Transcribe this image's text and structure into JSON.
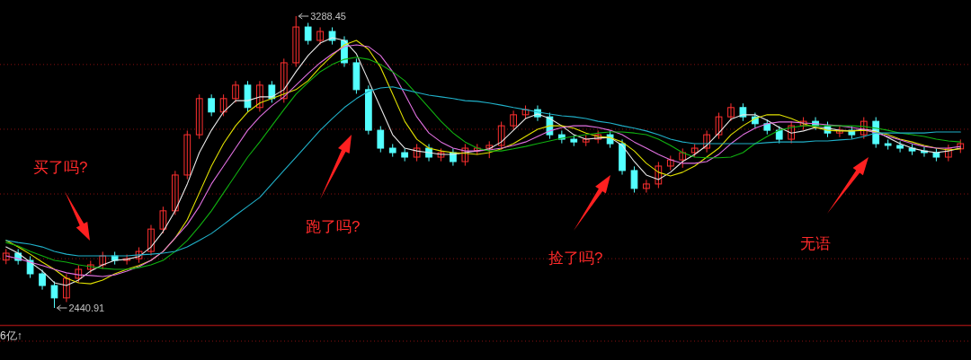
{
  "chart_data": {
    "type": "candlestick",
    "categories": [
      null,
      null,
      null,
      null,
      null,
      null,
      null,
      null,
      null,
      null,
      null,
      null,
      null,
      null,
      null,
      null,
      null,
      null,
      null,
      null,
      null,
      null,
      null,
      null,
      null,
      null,
      null,
      null,
      null,
      null,
      null,
      null,
      null,
      null,
      null,
      null,
      null,
      null,
      null,
      null,
      null,
      null,
      null,
      null,
      null,
      null,
      null,
      null,
      null,
      null,
      null,
      null,
      null,
      null,
      null,
      null,
      null,
      null,
      null,
      null,
      null,
      null,
      null,
      null,
      null,
      null,
      null,
      null,
      null,
      null,
      null,
      null,
      null,
      null,
      null,
      null,
      null,
      null,
      null,
      null
    ],
    "ohlc": [
      [
        2580,
        2612,
        2568,
        2600
      ],
      [
        2600,
        2612,
        2567,
        2579
      ],
      [
        2579,
        2591,
        2528,
        2540
      ],
      [
        2540,
        2552,
        2494,
        2506
      ],
      [
        2506,
        2518,
        2440.91,
        2470
      ],
      [
        2470,
        2539,
        2458,
        2527
      ],
      [
        2527,
        2565,
        2515,
        2553
      ],
      [
        2553,
        2578,
        2541,
        2566
      ],
      [
        2566,
        2604,
        2554,
        2592
      ],
      [
        2592,
        2604,
        2567,
        2579
      ],
      [
        2579,
        2596,
        2567,
        2584
      ],
      [
        2584,
        2617,
        2572,
        2605
      ],
      [
        2605,
        2682,
        2593,
        2670
      ],
      [
        2670,
        2735,
        2658,
        2723
      ],
      [
        2723,
        2839,
        2711,
        2827
      ],
      [
        2827,
        2956,
        2815,
        2944
      ],
      [
        2944,
        3061,
        2932,
        3049
      ],
      [
        3049,
        3061,
        2998,
        3010
      ],
      [
        3010,
        3061,
        2998,
        3049
      ],
      [
        3049,
        3100,
        3037,
        3088
      ],
      [
        3088,
        3100,
        3011,
        3023
      ],
      [
        3023,
        3100,
        3011,
        3088
      ],
      [
        3088,
        3100,
        3037,
        3049
      ],
      [
        3049,
        3165,
        3037,
        3153
      ],
      [
        3153,
        3288.45,
        3141,
        3257
      ],
      [
        3257,
        3269,
        3206,
        3218
      ],
      [
        3218,
        3256,
        3206,
        3244
      ],
      [
        3244,
        3256,
        3206,
        3218
      ],
      [
        3218,
        3230,
        3141,
        3153
      ],
      [
        3153,
        3165,
        3063,
        3075
      ],
      [
        3075,
        3087,
        2945,
        2957
      ],
      [
        2957,
        2969,
        2893,
        2905
      ],
      [
        2905,
        2917,
        2880,
        2892
      ],
      [
        2892,
        2904,
        2867,
        2879
      ],
      [
        2879,
        2917,
        2867,
        2905
      ],
      [
        2905,
        2917,
        2867,
        2879
      ],
      [
        2879,
        2904,
        2867,
        2892
      ],
      [
        2892,
        2904,
        2854,
        2866
      ],
      [
        2866,
        2917,
        2854,
        2905
      ],
      [
        2898,
        2917,
        2886,
        2905
      ],
      [
        2905,
        2925,
        2876,
        2913
      ],
      [
        2913,
        2982,
        2901,
        2970
      ],
      [
        2970,
        3014,
        2958,
        3002
      ],
      [
        3002,
        3029,
        2990,
        3017
      ],
      [
        3017,
        3029,
        2984,
        2996
      ],
      [
        2996,
        3008,
        2932,
        2944
      ],
      [
        2944,
        2956,
        2919,
        2931
      ],
      [
        2931,
        2943,
        2911,
        2923
      ],
      [
        2923,
        2943,
        2911,
        2931
      ],
      [
        2931,
        2956,
        2919,
        2944
      ],
      [
        2944,
        2956,
        2906,
        2918
      ],
      [
        2918,
        2930,
        2828,
        2840
      ],
      [
        2840,
        2852,
        2776,
        2788
      ],
      [
        2788,
        2813,
        2776,
        2801
      ],
      [
        2801,
        2865,
        2789,
        2853
      ],
      [
        2853,
        2883,
        2841,
        2871
      ],
      [
        2871,
        2904,
        2848,
        2892
      ],
      [
        2892,
        2917,
        2880,
        2905
      ],
      [
        2905,
        2956,
        2893,
        2944
      ],
      [
        2944,
        3008,
        2932,
        2996
      ],
      [
        2996,
        3035,
        2984,
        3023
      ],
      [
        3023,
        3035,
        2984,
        2996
      ],
      [
        2996,
        3008,
        2964,
        2976
      ],
      [
        2976,
        2988,
        2945,
        2957
      ],
      [
        2957,
        2969,
        2919,
        2931
      ],
      [
        2931,
        2982,
        2919,
        2970
      ],
      [
        2970,
        2995,
        2958,
        2983
      ],
      [
        2983,
        2995,
        2958,
        2970
      ],
      [
        2970,
        2982,
        2937,
        2949
      ],
      [
        2949,
        2969,
        2937,
        2957
      ],
      [
        2957,
        2969,
        2932,
        2944
      ],
      [
        2944,
        2995,
        2932,
        2983
      ],
      [
        2983,
        2995,
        2906,
        2918
      ],
      [
        2918,
        2930,
        2901,
        2913
      ],
      [
        2913,
        2925,
        2893,
        2905
      ],
      [
        2905,
        2917,
        2885,
        2897
      ],
      [
        2897,
        2909,
        2880,
        2892
      ],
      [
        2892,
        2904,
        2867,
        2879
      ],
      [
        2879,
        2915,
        2867,
        2903
      ],
      [
        2903,
        2930,
        2891,
        2918
      ]
    ],
    "series": [
      {
        "type": "line",
        "color": "#e8e8e8",
        "values": [
          2618,
          2600,
          2574,
          2548,
          2514,
          2506,
          2522,
          2548,
          2566,
          2579,
          2582,
          2590,
          2618,
          2663,
          2723,
          2801,
          2892,
          2957,
          3010,
          3043,
          3043,
          3054,
          3054,
          3075,
          3127,
          3174,
          3210,
          3226,
          3218,
          3179,
          3101,
          3023,
          2944,
          2905,
          2897,
          2892,
          2887,
          2887,
          2892,
          2897,
          2903,
          2923,
          2957,
          2991,
          3004,
          2991,
          2970,
          2944,
          2931,
          2934,
          2936,
          2913,
          2866,
          2827,
          2814,
          2835,
          2866,
          2887,
          2913,
          2949,
          2989,
          3002,
          3002,
          2986,
          2965,
          2949,
          2955,
          2965,
          2963,
          2957,
          2955,
          2960,
          2955,
          2936,
          2918,
          2905,
          2897,
          2892,
          2897,
          2905
        ]
      },
      {
        "type": "line",
        "color": "#e0e000",
        "values": [
          2637,
          2618,
          2597,
          2574,
          2553,
          2527,
          2514,
          2511,
          2522,
          2540,
          2553,
          2564,
          2579,
          2605,
          2644,
          2697,
          2775,
          2853,
          2918,
          2970,
          3010,
          3036,
          3049,
          3062,
          3075,
          3101,
          3140,
          3174,
          3205,
          3218,
          3192,
          3140,
          3062,
          2983,
          2931,
          2905,
          2897,
          2892,
          2890,
          2887,
          2892,
          2903,
          2918,
          2939,
          2960,
          2970,
          2970,
          2963,
          2949,
          2939,
          2936,
          2923,
          2897,
          2861,
          2835,
          2824,
          2835,
          2853,
          2879,
          2905,
          2944,
          2970,
          2991,
          3002,
          3002,
          2991,
          2976,
          2965,
          2957,
          2955,
          2955,
          2957,
          2952,
          2944,
          2931,
          2923,
          2913,
          2905,
          2900,
          2903
        ]
      },
      {
        "type": "line",
        "color": "#e070e0",
        "values": [
          2592,
          2584,
          2574,
          2564,
          2553,
          2543,
          2537,
          2535,
          2532,
          2537,
          2548,
          2561,
          2579,
          2605,
          2644,
          2683,
          2736,
          2801,
          2853,
          2905,
          2957,
          2996,
          3028,
          3054,
          3088,
          3122,
          3153,
          3179,
          3200,
          3205,
          3200,
          3174,
          3127,
          3062,
          2996,
          2949,
          2923,
          2905,
          2897,
          2897,
          2900,
          2905,
          2913,
          2923,
          2939,
          2955,
          2965,
          2970,
          2970,
          2965,
          2957,
          2944,
          2923,
          2905,
          2887,
          2871,
          2861,
          2861,
          2866,
          2887,
          2918,
          2944,
          2963,
          2976,
          2981,
          2981,
          2978,
          2976,
          2973,
          2970,
          2965,
          2960,
          2949,
          2939,
          2929,
          2918,
          2910,
          2905,
          2905,
          2910
        ]
      },
      {
        "type": "line",
        "color": "#10b010",
        "values": [
          2631,
          2621,
          2605,
          2592,
          2579,
          2574,
          2566,
          2561,
          2556,
          2553,
          2553,
          2558,
          2566,
          2579,
          2605,
          2637,
          2678,
          2723,
          2775,
          2827,
          2879,
          2923,
          2970,
          3017,
          3062,
          3096,
          3127,
          3148,
          3163,
          3169,
          3163,
          3148,
          3127,
          3101,
          3062,
          3023,
          2983,
          2949,
          2923,
          2905,
          2897,
          2897,
          2903,
          2910,
          2918,
          2926,
          2934,
          2939,
          2944,
          2949,
          2952,
          2952,
          2949,
          2944,
          2931,
          2913,
          2892,
          2879,
          2877,
          2877,
          2879,
          2892,
          2918,
          2939,
          2957,
          2965,
          2970,
          2970,
          2970,
          2970,
          2970,
          2968,
          2963,
          2957,
          2949,
          2944,
          2939,
          2931,
          2926,
          2923
        ]
      },
      {
        "type": "line",
        "color": "#20b0c8",
        "values": [
          2637,
          2631,
          2626,
          2618,
          2605,
          2597,
          2592,
          2592,
          2592,
          2592,
          2592,
          2595,
          2597,
          2600,
          2605,
          2618,
          2637,
          2657,
          2683,
          2710,
          2736,
          2762,
          2801,
          2840,
          2879,
          2918,
          2957,
          2991,
          3023,
          3049,
          3070,
          3080,
          3083,
          3075,
          3067,
          3059,
          3054,
          3049,
          3043,
          3041,
          3036,
          3030,
          3023,
          3017,
          3010,
          3004,
          2999,
          2996,
          2991,
          2983,
          2978,
          2970,
          2963,
          2955,
          2944,
          2931,
          2923,
          2918,
          2918,
          2918,
          2918,
          2918,
          2918,
          2921,
          2923,
          2923,
          2923,
          2926,
          2926,
          2929,
          2931,
          2939,
          2949,
          2949,
          2949,
          2949,
          2949,
          2952,
          2952,
          2952
        ]
      }
    ],
    "yticks": [
      {
        "value": 2584,
        "label": null
      },
      {
        "value": 2772,
        "label": null
      },
      {
        "value": 2960,
        "label": null
      },
      {
        "value": 3148,
        "label": null
      }
    ],
    "grid": "y",
    "annotations": [
      "3288.45",
      "2440.91",
      "买了吗?",
      "跑了吗?",
      "捡了吗?",
      "无语",
      "6亿↑"
    ]
  }
}
